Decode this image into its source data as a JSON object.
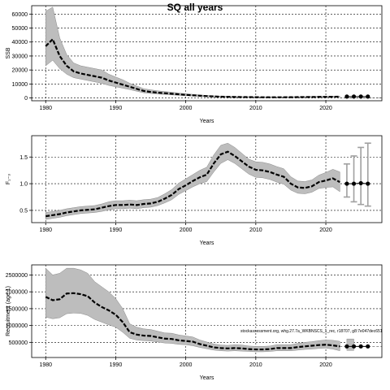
{
  "title": "SQ all years",
  "note": "stockassessment.org, whg.27.7a_WKBNSCS_1_rec, r18707, g8:7e047dec651",
  "chart_data": [
    {
      "type": "line",
      "ylabel": "SSB",
      "xlabel": "Years",
      "xlim": [
        1978,
        2028
      ],
      "ylim": [
        -2000,
        66000
      ],
      "x_ticks": [
        1980,
        1990,
        2000,
        2010,
        2020
      ],
      "y_ticks": [
        0,
        10000,
        20000,
        30000,
        40000,
        50000,
        60000
      ],
      "y_tick_labels": [
        "0",
        "10000",
        "20000",
        "30000",
        "40000",
        "50000",
        "60000"
      ],
      "grid": true,
      "x": [
        1980,
        1981,
        1982,
        1983,
        1984,
        1985,
        1986,
        1987,
        1988,
        1989,
        1990,
        1991,
        1992,
        1993,
        1994,
        1995,
        1996,
        1997,
        1998,
        1999,
        2000,
        2001,
        2002,
        2003,
        2004,
        2005,
        2006,
        2007,
        2008,
        2009,
        2010,
        2011,
        2012,
        2013,
        2014,
        2015,
        2016,
        2017,
        2018,
        2019,
        2020,
        2021,
        2022
      ],
      "estimate": [
        37000,
        42000,
        30000,
        23000,
        19000,
        17500,
        16500,
        15500,
        14500,
        12500,
        11000,
        9500,
        8000,
        6500,
        5000,
        4300,
        3800,
        3400,
        3000,
        2600,
        2200,
        1900,
        1600,
        1300,
        1100,
        900,
        800,
        700,
        650,
        600,
        550,
        500,
        500,
        500,
        500,
        550,
        600,
        650,
        700,
        750,
        800,
        850,
        900
      ],
      "lower": [
        23000,
        27000,
        21000,
        17000,
        14500,
        13500,
        12500,
        11500,
        10500,
        9000,
        8000,
        7000,
        6000,
        4800,
        3700,
        3200,
        2800,
        2500,
        2200,
        1900,
        1600,
        1400,
        1100,
        900,
        700,
        600,
        500,
        450,
        400,
        380,
        350,
        330,
        330,
        330,
        330,
        360,
        400,
        420,
        450,
        480,
        500,
        520,
        550
      ],
      "upper": [
        62000,
        65000,
        43000,
        31000,
        25000,
        23000,
        22000,
        21000,
        20000,
        17000,
        15000,
        13000,
        10500,
        8600,
        6600,
        5800,
        5100,
        4600,
        4100,
        3500,
        3000,
        2600,
        2200,
        1800,
        1500,
        1250,
        1100,
        1000,
        900,
        850,
        800,
        750,
        750,
        750,
        750,
        800,
        850,
        900,
        1000,
        1050,
        1150,
        1250,
        1350
      ],
      "projection": {
        "x": [
          2023,
          2024,
          2025,
          2026
        ],
        "y": [
          1000,
          1000,
          1000,
          1000
        ]
      },
      "reference_line": 0
    },
    {
      "type": "line",
      "ylabel": "F₁₋₃",
      "xlabel": "Years",
      "xlim": [
        1978,
        2028
      ],
      "ylim": [
        0.27,
        1.9
      ],
      "x_ticks": [
        1980,
        1990,
        2000,
        2010,
        2020
      ],
      "y_ticks": [
        0.5,
        1.0,
        1.5
      ],
      "y_tick_labels": [
        "0.5",
        "1.0",
        "1.5"
      ],
      "grid": true,
      "x": [
        1980,
        1981,
        1982,
        1983,
        1984,
        1985,
        1986,
        1987,
        1988,
        1989,
        1990,
        1991,
        1992,
        1993,
        1994,
        1995,
        1996,
        1997,
        1998,
        1999,
        2000,
        2001,
        2002,
        2003,
        2004,
        2005,
        2006,
        2007,
        2008,
        2009,
        2010,
        2011,
        2012,
        2013,
        2014,
        2015,
        2016,
        2017,
        2018,
        2019,
        2020,
        2021,
        2022
      ],
      "estimate": [
        0.39,
        0.41,
        0.43,
        0.46,
        0.48,
        0.5,
        0.51,
        0.52,
        0.55,
        0.58,
        0.6,
        0.6,
        0.61,
        0.6,
        0.62,
        0.63,
        0.66,
        0.72,
        0.79,
        0.9,
        0.97,
        1.05,
        1.12,
        1.17,
        1.38,
        1.55,
        1.6,
        1.52,
        1.42,
        1.32,
        1.26,
        1.25,
        1.22,
        1.17,
        1.13,
        1.0,
        0.93,
        0.92,
        0.95,
        1.03,
        1.06,
        1.1,
        1.03
      ],
      "lower": [
        0.33,
        0.35,
        0.37,
        0.4,
        0.42,
        0.44,
        0.45,
        0.46,
        0.48,
        0.51,
        0.53,
        0.53,
        0.54,
        0.53,
        0.55,
        0.56,
        0.59,
        0.64,
        0.7,
        0.8,
        0.87,
        0.94,
        1.0,
        1.04,
        1.22,
        1.38,
        1.45,
        1.38,
        1.28,
        1.18,
        1.12,
        1.11,
        1.08,
        1.03,
        0.99,
        0.88,
        0.82,
        0.81,
        0.84,
        0.91,
        0.93,
        0.94,
        0.85
      ],
      "upper": [
        0.46,
        0.48,
        0.5,
        0.53,
        0.55,
        0.57,
        0.58,
        0.59,
        0.62,
        0.66,
        0.68,
        0.68,
        0.69,
        0.68,
        0.7,
        0.71,
        0.74,
        0.81,
        0.89,
        1.01,
        1.09,
        1.17,
        1.25,
        1.31,
        1.54,
        1.72,
        1.76,
        1.68,
        1.57,
        1.46,
        1.41,
        1.4,
        1.37,
        1.32,
        1.28,
        1.13,
        1.05,
        1.04,
        1.07,
        1.16,
        1.21,
        1.27,
        1.22
      ],
      "projection": {
        "x": [
          2023,
          2024,
          2025,
          2026
        ],
        "y": [
          1.0,
          1.0,
          1.01,
          1.0
        ]
      },
      "projection_intervals": [
        {
          "x": 2023,
          "low": 0.75,
          "high": 1.37
        },
        {
          "x": 2024,
          "low": 0.66,
          "high": 1.52
        },
        {
          "x": 2025,
          "low": 0.61,
          "high": 1.68
        },
        {
          "x": 2026,
          "low": 0.58,
          "high": 1.76
        }
      ]
    },
    {
      "type": "line",
      "ylabel": "Recruitment (age 1)",
      "xlabel": "Years",
      "xlim": [
        1978,
        2028
      ],
      "ylim": [
        50000,
        2800000
      ],
      "x_ticks": [
        1980,
        1990,
        2000,
        2010,
        2020
      ],
      "y_ticks": [
        500000,
        1000000,
        1500000,
        2000000,
        2500000
      ],
      "y_tick_labels": [
        "500000",
        "1000000",
        "1500000",
        "2000000",
        "2500000"
      ],
      "grid": true,
      "x": [
        1980,
        1981,
        1982,
        1983,
        1984,
        1985,
        1986,
        1987,
        1988,
        1989,
        1990,
        1991,
        1992,
        1993,
        1994,
        1995,
        1996,
        1997,
        1998,
        1999,
        2000,
        2001,
        2002,
        2003,
        2004,
        2005,
        2006,
        2007,
        2008,
        2009,
        2010,
        2011,
        2012,
        2013,
        2014,
        2015,
        2016,
        2017,
        2018,
        2019,
        2020,
        2021,
        2022
      ],
      "estimate": [
        1850000,
        1750000,
        1780000,
        1950000,
        1960000,
        1930000,
        1870000,
        1680000,
        1550000,
        1450000,
        1320000,
        1100000,
        800000,
        730000,
        700000,
        690000,
        650000,
        610000,
        600000,
        560000,
        540000,
        520000,
        450000,
        400000,
        350000,
        330000,
        320000,
        330000,
        320000,
        300000,
        290000,
        290000,
        300000,
        330000,
        330000,
        330000,
        360000,
        380000,
        400000,
        420000,
        430000,
        410000,
        380000
      ],
      "lower": [
        1250000,
        1200000,
        1230000,
        1350000,
        1370000,
        1360000,
        1300000,
        1180000,
        1100000,
        1020000,
        950000,
        800000,
        620000,
        570000,
        550000,
        540000,
        510000,
        480000,
        470000,
        440000,
        430000,
        400000,
        350000,
        310000,
        270000,
        250000,
        240000,
        250000,
        240000,
        230000,
        220000,
        220000,
        230000,
        250000,
        250000,
        250000,
        270000,
        290000,
        300000,
        320000,
        330000,
        300000,
        250000
      ],
      "upper": [
        2700000,
        2500000,
        2550000,
        2700000,
        2700000,
        2650000,
        2550000,
        2300000,
        2150000,
        2000000,
        1800000,
        1500000,
        1050000,
        950000,
        900000,
        880000,
        830000,
        780000,
        770000,
        720000,
        690000,
        660000,
        570000,
        510000,
        450000,
        420000,
        410000,
        430000,
        420000,
        390000,
        380000,
        380000,
        390000,
        430000,
        430000,
        430000,
        470000,
        500000,
        520000,
        550000,
        570000,
        560000,
        530000
      ],
      "projection": {
        "x": [
          2023,
          2024,
          2025,
          2026
        ],
        "y": [
          380000,
          380000,
          380000,
          380000
        ]
      },
      "projection_band": {
        "x": [
          2023,
          2024
        ],
        "low": [
          260000,
          260000
        ],
        "high": [
          600000,
          600000
        ]
      },
      "reference_line": 380000
    }
  ]
}
